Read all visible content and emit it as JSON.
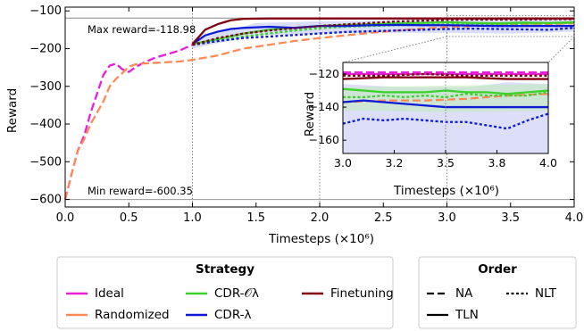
{
  "chart_data": {
    "type": "line",
    "xlabel": "Timesteps (×10⁶)",
    "ylabel": "Reward",
    "xlim": [
      0,
      4
    ],
    "ylim": [
      -620,
      -90
    ],
    "xticks": [
      "0.0",
      "0.5",
      "1.0",
      "1.5",
      "2.0",
      "2.5",
      "3.0",
      "3.5",
      "4.0"
    ],
    "yticks": [
      "−100",
      "−200",
      "−300",
      "−400",
      "−500",
      "−600"
    ],
    "grid": false,
    "annotations": {
      "max": "Max reward=-118.98",
      "min": "Min reward=-600.35"
    },
    "max_reward": -118.98,
    "min_reward": -600.35,
    "vlines": [
      1.0,
      2.0,
      3.0
    ],
    "colors": {
      "Ideal": "#e61fd8",
      "Randomized": "#ff8a56",
      "CDR-Oλ": "#39d12a",
      "CDR-λ": "#0d1ad6",
      "Finetuning": "#800012"
    },
    "series": [
      {
        "name": "Ideal",
        "style": "dashed",
        "x": [
          0,
          0.03,
          0.06,
          0.1,
          0.15,
          0.2,
          0.25,
          0.3,
          0.35,
          0.4,
          0.45,
          0.5,
          0.55,
          0.6,
          0.7,
          0.8,
          0.9,
          1.0
        ],
        "y": [
          -600,
          -560,
          -520,
          -470,
          -430,
          -370,
          -320,
          -270,
          -245,
          -240,
          -255,
          -262,
          -250,
          -240,
          -225,
          -215,
          -205,
          -190
        ]
      },
      {
        "name": "Randomized",
        "style": "dashed",
        "x": [
          0,
          0.03,
          0.06,
          0.1,
          0.15,
          0.2,
          0.25,
          0.3,
          0.35,
          0.4,
          0.45,
          0.5,
          0.55,
          0.6,
          0.7,
          0.8,
          0.9,
          1.0,
          1.2,
          1.4,
          1.6,
          1.8,
          2.0,
          2.2,
          2.4,
          2.6,
          2.8,
          3.0,
          3.2,
          3.4,
          3.6,
          3.8,
          4.0
        ],
        "y": [
          -600,
          -560,
          -520,
          -470,
          -440,
          -400,
          -370,
          -340,
          -300,
          -280,
          -265,
          -248,
          -242,
          -240,
          -238,
          -236,
          -234,
          -230,
          -218,
          -200,
          -190,
          -180,
          -172,
          -165,
          -158,
          -152,
          -147,
          -143,
          -140,
          -138,
          -136,
          -135,
          -133
        ]
      },
      {
        "name": "CDR-Oλ",
        "style": "solid",
        "x": [
          1.0,
          1.2,
          1.4,
          1.6,
          1.8,
          2.0,
          2.2,
          2.4,
          2.6,
          2.8,
          3.0,
          3.2,
          3.4,
          3.6,
          3.8,
          4.0
        ],
        "y": [
          -188,
          -175,
          -160,
          -150,
          -145,
          -140,
          -137,
          -135,
          -133,
          -132,
          -130,
          -132,
          -133,
          -131,
          -132,
          -130
        ]
      },
      {
        "name": "CDR-Oλ",
        "style": "dotted",
        "x": [
          1.0,
          1.2,
          1.4,
          1.6,
          1.8,
          2.0,
          2.2,
          2.4,
          2.6,
          2.8,
          3.0,
          3.2,
          3.4,
          3.6,
          3.8,
          4.0
        ],
        "y": [
          -190,
          -180,
          -168,
          -160,
          -152,
          -146,
          -142,
          -140,
          -138,
          -137,
          -136,
          -133,
          -136,
          -134,
          -133,
          -132
        ]
      },
      {
        "name": "CDR-λ",
        "style": "solid",
        "x": [
          1.0,
          1.1,
          1.2,
          1.3,
          1.4,
          1.6,
          1.8,
          2.0,
          2.2,
          2.4,
          2.6,
          2.8,
          3.0,
          3.2,
          3.4,
          3.6,
          3.8,
          4.0
        ],
        "y": [
          -188,
          -165,
          -155,
          -148,
          -145,
          -142,
          -145,
          -140,
          -140,
          -138,
          -137,
          -138,
          -138,
          -139,
          -140,
          -140,
          -140,
          -140
        ]
      },
      {
        "name": "CDR-λ",
        "style": "dotted",
        "x": [
          1.0,
          1.2,
          1.4,
          1.6,
          1.8,
          2.0,
          2.2,
          2.4,
          2.6,
          2.8,
          3.0,
          3.2,
          3.4,
          3.6,
          3.8,
          4.0
        ],
        "y": [
          -190,
          -180,
          -172,
          -168,
          -164,
          -160,
          -156,
          -154,
          -152,
          -150,
          -148,
          -147,
          -148,
          -149,
          -150,
          -145
        ]
      },
      {
        "name": "Finetuning",
        "style": "solid",
        "x": [
          1.0,
          1.1,
          1.2,
          1.3,
          1.4,
          1.6,
          1.8,
          2.0,
          2.5,
          3.0,
          3.5,
          4.0
        ],
        "y": [
          -188,
          -150,
          -135,
          -125,
          -121,
          -120,
          -120,
          -120,
          -120,
          -120,
          -120,
          -120
        ]
      },
      {
        "name": "Finetuning",
        "style": "dotted",
        "x": [
          1.0,
          1.2,
          1.4,
          1.6,
          1.8,
          2.0,
          2.2,
          2.4,
          2.6,
          2.8,
          3.0,
          3.2,
          3.4,
          3.6,
          3.8,
          4.0
        ],
        "y": [
          -190,
          -172,
          -160,
          -152,
          -146,
          -140,
          -136,
          -132,
          -128,
          -126,
          -124,
          -123,
          -123,
          -123,
          -122,
          -122
        ]
      }
    ],
    "inset": {
      "xlabel": "Timesteps (×10⁶)",
      "ylabel": "Reward",
      "xlim": [
        3.0,
        4.0
      ],
      "ylim": [
        -168,
        -113
      ],
      "xticks": [
        "3.0",
        "3.2",
        "3.5",
        "3.8",
        "4.0"
      ],
      "yticks": [
        "−120",
        "−140",
        "−160"
      ],
      "series": [
        {
          "name": "Ideal",
          "style": "dashed",
          "x": [
            3.0,
            4.0
          ],
          "y": [
            -119,
            -119
          ]
        },
        {
          "name": "Ideal",
          "style": "solid",
          "x": [
            3.0,
            4.0
          ],
          "y": [
            -120,
            -120
          ]
        },
        {
          "name": "Finetuning",
          "style": "solid",
          "x": [
            3.0,
            3.2,
            3.4,
            3.6,
            3.8,
            4.0
          ],
          "y": [
            -123,
            -122,
            -122,
            -122,
            -123,
            -123
          ]
        },
        {
          "name": "Finetuning",
          "style": "dotted",
          "x": [
            3.0,
            3.2,
            3.4,
            3.6,
            3.8,
            4.0
          ],
          "y": [
            -121,
            -121,
            -120,
            -121,
            -121,
            -121
          ]
        },
        {
          "name": "Randomized",
          "style": "dashed",
          "x": [
            3.0,
            3.2,
            3.4,
            3.6,
            3.8,
            4.0
          ],
          "y": [
            -137,
            -136,
            -136,
            -135,
            -133,
            -132
          ]
        },
        {
          "name": "CDR-Oλ",
          "style": "solid",
          "x": [
            3.0,
            3.1,
            3.2,
            3.3,
            3.4,
            3.5,
            3.6,
            3.7,
            3.8,
            3.9,
            4.0
          ],
          "y": [
            -129,
            -130,
            -131,
            -131,
            -131,
            -130,
            -131,
            -131,
            -132,
            -131,
            -130
          ]
        },
        {
          "name": "CDR-Oλ",
          "style": "dotted",
          "x": [
            3.0,
            3.1,
            3.2,
            3.3,
            3.4,
            3.5,
            3.6,
            3.7,
            3.8,
            3.9,
            4.0
          ],
          "y": [
            -134,
            -134,
            -133,
            -134,
            -133,
            -134,
            -132,
            -133,
            -133,
            -133,
            -131
          ]
        },
        {
          "name": "CDR-λ",
          "style": "solid",
          "x": [
            3.0,
            3.1,
            3.2,
            3.3,
            3.4,
            3.5,
            3.6,
            3.7,
            3.8,
            3.9,
            4.0
          ],
          "y": [
            -137,
            -136,
            -137,
            -138,
            -139,
            -140,
            -140,
            -140,
            -140,
            -140,
            -140
          ]
        },
        {
          "name": "CDR-λ",
          "style": "dotted",
          "x": [
            3.0,
            3.1,
            3.2,
            3.3,
            3.4,
            3.5,
            3.6,
            3.7,
            3.8,
            3.9,
            4.0
          ],
          "y": [
            -150,
            -147,
            -148,
            -147,
            -148,
            -149,
            -149,
            -151,
            -153,
            -148,
            -144
          ]
        }
      ]
    }
  },
  "legend": {
    "strategy_title": "Strategy",
    "strategy_items": [
      {
        "label": "Ideal",
        "color": "#e61fd8"
      },
      {
        "label": "Randomized",
        "color": "#ff8a56"
      },
      {
        "label": "CDR-𝒪λ",
        "color": "#39d12a"
      },
      {
        "label": "CDR-λ",
        "color": "#0d1ad6"
      },
      {
        "label": "Finetuning",
        "color": "#800012"
      }
    ],
    "order_title": "Order",
    "order_items": [
      {
        "label": "NA",
        "style": "dashed"
      },
      {
        "label": "NLT",
        "style": "dotted"
      },
      {
        "label": "TLN",
        "style": "solid"
      }
    ]
  }
}
